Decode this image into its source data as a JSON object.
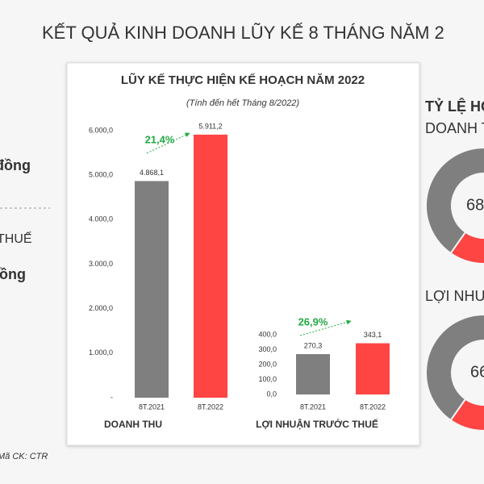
{
  "title": "KẾT QUẢ KINH DOANH LŨY KẾ 8 THÁNG NĂM 2",
  "left_notes": [
    "đồng",
    "THUẾ",
    "đồng"
  ],
  "footnote": "Mã CK: CTR",
  "panel": {
    "title": "LŨY KẾ THỰC HIỆN KẾ HOẠCH NĂM 2022",
    "subtitle": "(Tính đến hết Tháng 8/2022)"
  },
  "right_title": "TỶ LỆ HO",
  "chart_data": [
    {
      "type": "bar",
      "title": "DOANH THU",
      "categories": [
        "8T.2021",
        "8T.2022"
      ],
      "values": [
        4868.1,
        5911.2
      ],
      "value_labels": [
        "4.868,1",
        "5.911,2"
      ],
      "colors": [
        "#7f7f7f",
        "#ff4444"
      ],
      "growth_label": "21,4%",
      "ylim": [
        0,
        6000
      ],
      "yticks": [
        {
          "value": 0,
          "label": "-"
        },
        {
          "value": 1000,
          "label": "1.000,0"
        },
        {
          "value": 2000,
          "label": "2.000,0"
        },
        {
          "value": 3000,
          "label": "3.000,0"
        },
        {
          "value": 4000,
          "label": "4.000,0"
        },
        {
          "value": 5000,
          "label": "5.000,0"
        },
        {
          "value": 6000,
          "label": "6.000,0"
        }
      ]
    },
    {
      "type": "bar",
      "title": "LỢI NHUẬN TRƯỚC THUẾ",
      "categories": [
        "8T.2021",
        "8T.2022"
      ],
      "values": [
        270.3,
        343.1
      ],
      "value_labels": [
        "270,3",
        "343,1"
      ],
      "colors": [
        "#7f7f7f",
        "#ff4444"
      ],
      "growth_label": "26,9%",
      "ylim": [
        0,
        400
      ],
      "yticks": [
        {
          "value": 0,
          "label": "0,0"
        },
        {
          "value": 100,
          "label": "100,0"
        },
        {
          "value": 200,
          "label": "200,0"
        },
        {
          "value": 300,
          "label": "300,0"
        },
        {
          "value": 400,
          "label": "400,0"
        }
      ]
    },
    {
      "type": "donut",
      "title": "DOANH T",
      "values": [
        68,
        32
      ],
      "center_label": "68",
      "colors": [
        "#7f7f7f",
        "#ff4444"
      ]
    },
    {
      "type": "donut",
      "title": "LỢI NHU",
      "values": [
        66,
        34
      ],
      "center_label": "66",
      "colors": [
        "#7f7f7f",
        "#ff4444"
      ]
    }
  ]
}
